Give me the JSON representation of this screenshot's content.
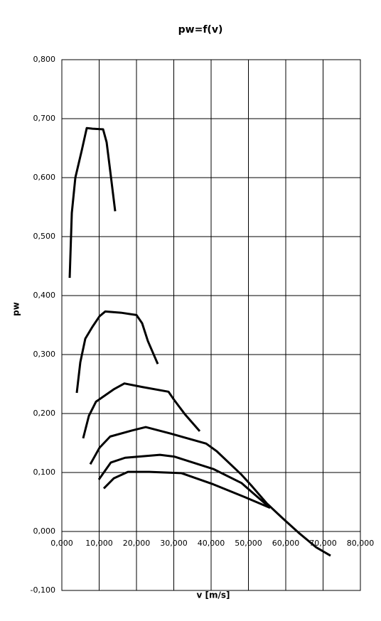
{
  "chart_data": {
    "type": "line",
    "title": "pw=f(v)",
    "x_label": "v [m/s]",
    "y_label": "pw",
    "xlim": [
      0,
      80000
    ],
    "ylim": [
      -0.1,
      0.8
    ],
    "grid": true,
    "xticks": [
      {
        "value": 0,
        "label": "0,000"
      },
      {
        "value": 10000,
        "label": "10,000"
      },
      {
        "value": 20000,
        "label": "20,000"
      },
      {
        "value": 30000,
        "label": "30,000"
      },
      {
        "value": 40000,
        "label": "40,000"
      },
      {
        "value": 50000,
        "label": "50,000"
      },
      {
        "value": 60000,
        "label": "60,000"
      },
      {
        "value": 70000,
        "label": "70,000"
      },
      {
        "value": 80000,
        "label": "80,000"
      }
    ],
    "yticks": [
      {
        "value": -0.1,
        "label": "-0,100"
      },
      {
        "value": 0,
        "label": "0,000"
      },
      {
        "value": 0.1,
        "label": "0,100"
      },
      {
        "value": 0.2,
        "label": "0,200"
      },
      {
        "value": 0.3,
        "label": "0,300"
      },
      {
        "value": 0.4,
        "label": "0,400"
      },
      {
        "value": 0.5,
        "label": "0,500"
      },
      {
        "value": 0.6,
        "label": "0,600"
      },
      {
        "value": 0.7,
        "label": "0,700"
      },
      {
        "value": 0.8,
        "label": "0,800"
      }
    ],
    "series": [
      {
        "color": "#000000",
        "x": [
          2100,
          2670,
          3620,
          5330,
          6670,
          8190,
          11050,
          12000,
          12950,
          14290
        ],
        "values": [
          0.43,
          0.54,
          0.6,
          0.646,
          0.684,
          0.683,
          0.682,
          0.66,
          0.612,
          0.543
        ]
      },
      {
        "color": "#000000",
        "x": [
          4000,
          4950,
          6290,
          8190,
          10100,
          11620,
          15810,
          20000,
          21520,
          23050,
          25710
        ],
        "values": [
          0.235,
          0.287,
          0.327,
          0.347,
          0.365,
          0.373,
          0.371,
          0.367,
          0.353,
          0.323,
          0.284
        ]
      },
      {
        "color": "#000000",
        "x": [
          5710,
          7240,
          9140,
          13900,
          16760,
          21520,
          28570,
          30100,
          32950,
          36950
        ],
        "values": [
          0.158,
          0.196,
          0.22,
          0.241,
          0.251,
          0.245,
          0.237,
          0.223,
          0.199,
          0.17
        ]
      },
      {
        "color": "#000000",
        "x": [
          7620,
          10100,
          12950,
          18670,
          22480,
          29140,
          38670,
          41520,
          48190,
          51050,
          54860,
          59240,
          63430,
          68190,
          72000
        ],
        "values": [
          0.114,
          0.142,
          0.161,
          0.171,
          0.177,
          0.166,
          0.149,
          0.136,
          0.096,
          0.076,
          0.048,
          0.022,
          -0.002,
          -0.027,
          -0.041
        ]
      },
      {
        "color": "#000000",
        "x": [
          9900,
          13140,
          16950,
          26290,
          30100,
          40570,
          48190,
          51430,
          55810
        ],
        "values": [
          0.088,
          0.117,
          0.125,
          0.13,
          0.127,
          0.106,
          0.082,
          0.064,
          0.04
        ]
      },
      {
        "color": "#000000",
        "x": [
          11240,
          13900,
          17710,
          23430,
          32000,
          40570,
          49140,
          55810
        ],
        "values": [
          0.073,
          0.09,
          0.101,
          0.101,
          0.099,
          0.08,
          0.058,
          0.04
        ]
      }
    ]
  }
}
